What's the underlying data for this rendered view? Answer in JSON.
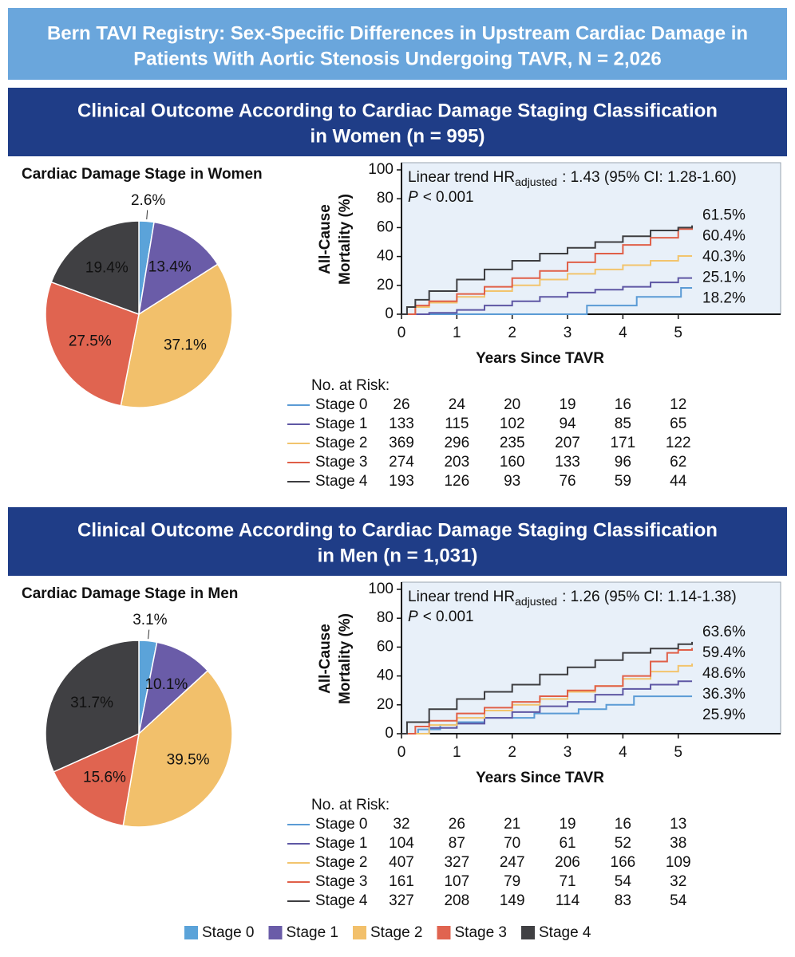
{
  "title": [
    "Bern TAVI Registry: Sex-Specific Differences in Upstream Cardiac Damage in",
    "Patients With Aortic Stenosis Undergoing TAVR, N = 2,026"
  ],
  "headings": [
    [
      "Clinical Outcome According to Cardiac Damage Staging Classification",
      "in Women (n = 995)"
    ],
    [
      "Clinical Outcome According to Cardiac Damage Staging Classification",
      "in Men (n = 1,031)"
    ]
  ],
  "legend": {
    "names": [
      "Stage 0",
      "Stage 1",
      "Stage 2",
      "Stage 3",
      "Stage 4"
    ],
    "colors": [
      "#5ba3d9",
      "#6a5ca8",
      "#f2c06b",
      "#e06450",
      "#404043"
    ]
  },
  "chart_data": [
    {
      "type": "pie",
      "title": "Cardiac Damage Stage in Women",
      "values": [
        2.6,
        13.4,
        37.1,
        27.5,
        19.4
      ],
      "value_labels": [
        "2.6%",
        "13.4%",
        "37.1%",
        "27.5%",
        "19.4%"
      ],
      "colors": [
        "#5ba3d9",
        "#6a5ca8",
        "#f2c06b",
        "#e06450",
        "#404043"
      ]
    },
    {
      "type": "line",
      "step": true,
      "xlabel": "Years Since TAVR",
      "ylabel": [
        "All-Cause",
        "Mortality (%)"
      ],
      "xlim": [
        0,
        6.85
      ],
      "ylim": [
        0,
        100
      ],
      "xticks": [
        0,
        1,
        2,
        3,
        4,
        5
      ],
      "yticks": [
        0,
        20,
        40,
        60,
        80,
        100
      ],
      "annotation": {
        "text": "Linear trend HR",
        "sub": "adjusted",
        "rest": ": 1.43 (95% CI: 1.28-1.60)"
      },
      "p_value": {
        "label": "P",
        "text": "< 0.001"
      },
      "series": [
        {
          "name": "Stage 0",
          "color": "#5b9bd5",
          "x": [
            0,
            3.35,
            4.25,
            5.05,
            5.25
          ],
          "values": [
            0,
            6,
            12,
            18.2,
            18.2
          ],
          "end_value": 18.2,
          "end_label": "18.2%"
        },
        {
          "name": "Stage 1",
          "color": "#5e57a4",
          "x": [
            0,
            0.5,
            1,
            1.5,
            2,
            2.5,
            3,
            3.5,
            4,
            4.5,
            5,
            5.25
          ],
          "values": [
            0,
            1,
            3,
            6,
            9,
            12,
            15,
            17,
            19,
            22,
            25.1,
            25.1
          ],
          "end_value": 25.1,
          "end_label": "25.1%"
        },
        {
          "name": "Stage 2",
          "color": "#f2c46d",
          "x": [
            0,
            0.25,
            0.5,
            1,
            1.5,
            2,
            2.5,
            3,
            3.5,
            4,
            4.5,
            5,
            5.25
          ],
          "values": [
            0,
            5,
            8,
            12,
            16,
            20,
            24,
            28,
            31,
            34,
            37,
            40.3,
            40.3
          ],
          "end_value": 40.3,
          "end_label": "40.3%"
        },
        {
          "name": "Stage 3",
          "color": "#e05f48",
          "x": [
            0,
            0.25,
            0.5,
            1,
            1.5,
            2,
            2.5,
            3,
            3.5,
            4,
            4.5,
            5,
            5.25
          ],
          "values": [
            0,
            6,
            9,
            14,
            19,
            25,
            30,
            36,
            42,
            48,
            53,
            59,
            60.4
          ],
          "end_value": 60.4,
          "end_label": "60.4%"
        },
        {
          "name": "Stage 4",
          "color": "#3d3d40",
          "x": [
            0,
            0.1,
            0.25,
            0.5,
            1,
            1.5,
            2,
            2.5,
            3,
            3.5,
            4,
            4.5,
            5,
            5.25
          ],
          "values": [
            0,
            5,
            10,
            16,
            24,
            31,
            37,
            42,
            46,
            50,
            54,
            58,
            60,
            61.5
          ],
          "end_value": 61.5,
          "end_label": "61.5%"
        }
      ],
      "risk_table": {
        "title": "No. at Risk:",
        "rows": [
          [
            26,
            24,
            20,
            19,
            16,
            12
          ],
          [
            133,
            115,
            102,
            94,
            85,
            65
          ],
          [
            369,
            296,
            235,
            207,
            171,
            122
          ],
          [
            274,
            203,
            160,
            133,
            96,
            62
          ],
          [
            193,
            126,
            93,
            76,
            59,
            44
          ]
        ]
      }
    },
    {
      "type": "pie",
      "title": "Cardiac Damage Stage in Men",
      "values": [
        3.1,
        10.1,
        39.5,
        15.6,
        31.7
      ],
      "value_labels": [
        "3.1%",
        "10.1%",
        "39.5%",
        "15.6%",
        "31.7%"
      ],
      "colors": [
        "#5ba3d9",
        "#6a5ca8",
        "#f2c06b",
        "#e06450",
        "#404043"
      ]
    },
    {
      "type": "line",
      "step": true,
      "xlabel": "Years Since TAVR",
      "ylabel": [
        "All-Cause",
        "Mortality (%)"
      ],
      "xlim": [
        0,
        6.85
      ],
      "ylim": [
        0,
        100
      ],
      "xticks": [
        0,
        1,
        2,
        3,
        4,
        5
      ],
      "yticks": [
        0,
        20,
        40,
        60,
        80,
        100
      ],
      "annotation": {
        "text": "Linear trend HR",
        "sub": "adjusted",
        "rest": ": 1.26 (95% CI: 1.14-1.38)"
      },
      "p_value": {
        "label": "P",
        "text": "< 0.001"
      },
      "series": [
        {
          "name": "Stage 0",
          "color": "#5b9bd5",
          "x": [
            0,
            0.3,
            0.7,
            1,
            1.5,
            2.4,
            3.2,
            3.7,
            4.2,
            5.25
          ],
          "values": [
            0,
            3,
            6,
            8,
            11,
            14,
            17,
            20,
            25.9,
            25.9
          ],
          "end_value": 25.9,
          "end_label": "25.9%"
        },
        {
          "name": "Stage 1",
          "color": "#5e57a4",
          "x": [
            0,
            0.5,
            1,
            1.5,
            2,
            2.5,
            3,
            3.5,
            4,
            4.5,
            5,
            5.25
          ],
          "values": [
            0,
            4,
            7,
            11,
            15,
            19,
            22,
            27,
            31,
            34,
            36.3,
            36.3
          ],
          "end_value": 36.3,
          "end_label": "36.3%"
        },
        {
          "name": "Stage 2",
          "color": "#f2c46d",
          "x": [
            0,
            0.5,
            1,
            1.5,
            2,
            2.5,
            3,
            3.5,
            4,
            4.5,
            5,
            5.25
          ],
          "values": [
            0,
            6,
            11,
            16,
            20,
            24,
            29,
            33,
            38,
            43,
            47,
            48.6
          ],
          "end_value": 48.6,
          "end_label": "48.6%"
        },
        {
          "name": "Stage 3",
          "color": "#e05f48",
          "x": [
            0,
            0.25,
            0.5,
            1,
            1.5,
            2,
            2.5,
            3,
            3.5,
            4,
            4.5,
            4.8,
            5,
            5.25
          ],
          "values": [
            0,
            5,
            9,
            14,
            18,
            22,
            26,
            30,
            33,
            40,
            50,
            56,
            58,
            59.4
          ],
          "end_value": 59.4,
          "end_label": "59.4%"
        },
        {
          "name": "Stage 4",
          "color": "#3d3d40",
          "x": [
            0,
            0.1,
            0.5,
            1,
            1.5,
            2,
            2.5,
            3,
            3.5,
            4,
            4.5,
            5,
            5.25
          ],
          "values": [
            0,
            8,
            17,
            24,
            29,
            34,
            41,
            46,
            51,
            56,
            59,
            62,
            63.6
          ],
          "end_value": 63.6,
          "end_label": "63.6%"
        }
      ],
      "risk_table": {
        "title": "No. at Risk:",
        "rows": [
          [
            32,
            26,
            21,
            19,
            16,
            13
          ],
          [
            104,
            87,
            70,
            61,
            52,
            38
          ],
          [
            407,
            327,
            247,
            206,
            166,
            109
          ],
          [
            161,
            107,
            79,
            71,
            54,
            32
          ],
          [
            327,
            208,
            149,
            114,
            83,
            54
          ]
        ]
      }
    }
  ]
}
